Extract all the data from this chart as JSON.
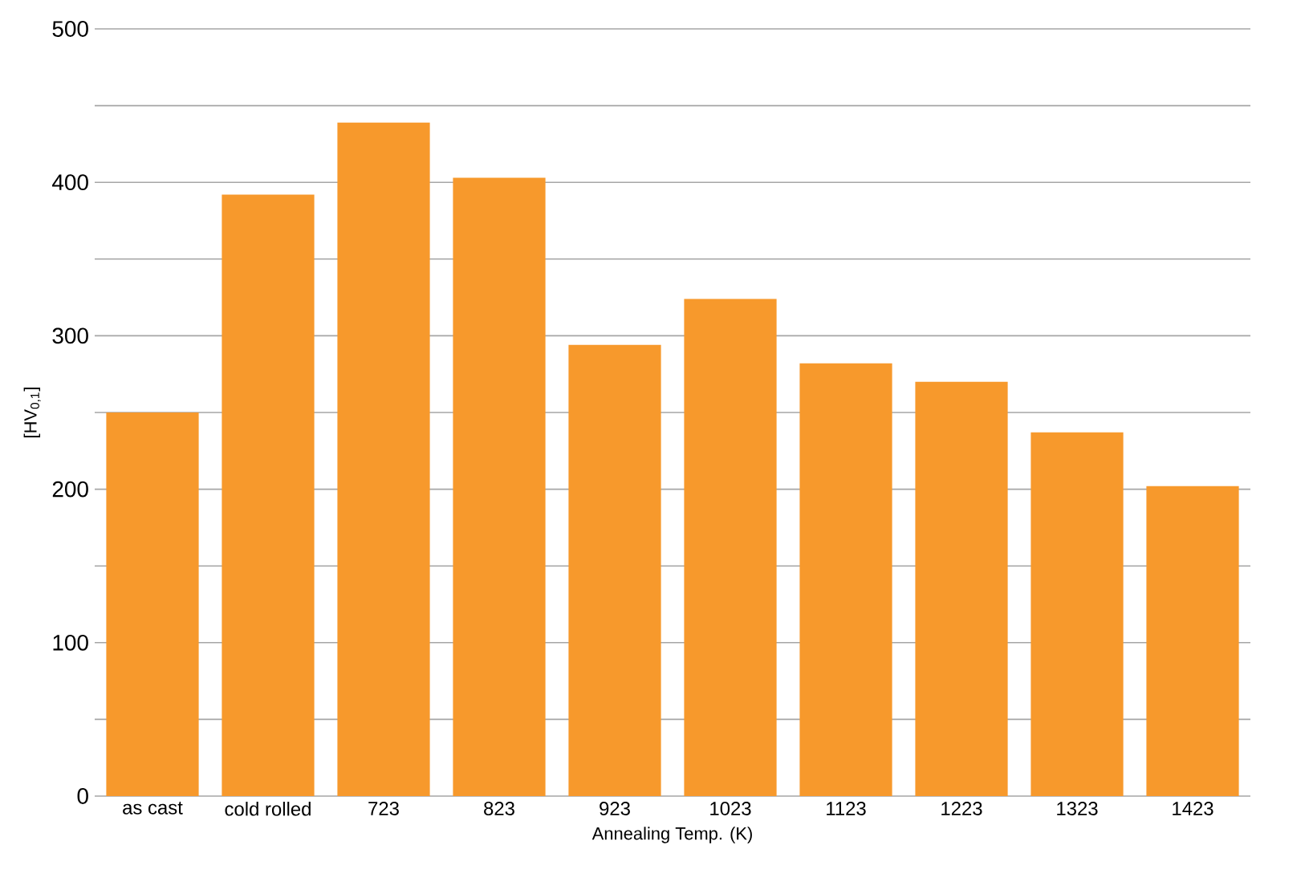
{
  "chart_data": {
    "type": "bar",
    "xlabel": "Annealing Temp. (K)",
    "ylabel": "[HV$_{0,1}$]",
    "categories": [
      "as cast",
      "cold rolled",
      "723",
      "823",
      "923",
      "1023",
      "1123",
      "1223",
      "1323",
      "1423"
    ],
    "values": [
      250,
      392,
      439,
      403,
      294,
      324,
      282,
      270,
      237,
      202
    ],
    "color": "#f7992c",
    "ylim": [
      0,
      500
    ],
    "yticks": [
      0,
      {
        "value": 50,
        "label": null
      },
      100,
      {
        "value": 150,
        "label": null
      },
      200,
      {
        "value": 250,
        "label": null
      },
      300,
      {
        "value": 350,
        "label": null
      },
      400,
      {
        "value": 450,
        "label": null
      },
      500
    ],
    "grid": "y"
  }
}
